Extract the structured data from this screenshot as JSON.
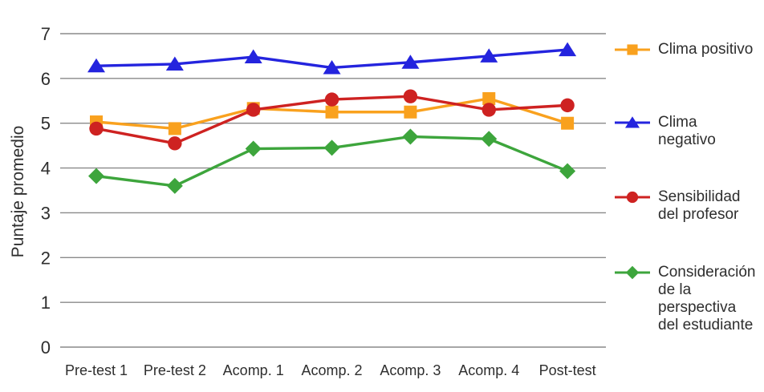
{
  "chart_data": {
    "type": "line",
    "title": "",
    "xlabel": "",
    "ylabel": "Puntaje promedio",
    "ylim": [
      0,
      7
    ],
    "yticks": [
      0,
      1,
      2,
      3,
      4,
      5,
      6,
      7
    ],
    "grid": true,
    "legend_position": "right",
    "axis_color": "#8a8a8a",
    "categories": [
      "Pre-test 1",
      "Pre-test 2",
      "Acomp. 1",
      "Acomp. 2",
      "Acomp. 3",
      "Acomp. 4",
      "Post-test"
    ],
    "series": [
      {
        "name": "Clima positivo",
        "label_display": "Clima positivo",
        "marker": "square",
        "color": "#F9A11E",
        "values": [
          5.03,
          4.88,
          5.33,
          5.25,
          5.25,
          5.55,
          5.0
        ]
      },
      {
        "name": "Clima negativo",
        "label_display": "Clima\nnegativo",
        "marker": "triangle",
        "color": "#2424DE",
        "values": [
          6.28,
          6.32,
          6.48,
          6.24,
          6.36,
          6.5,
          6.64
        ]
      },
      {
        "name": "Sensibilidad del profesor",
        "label_display": "Sensibilidad\ndel profesor",
        "marker": "circle",
        "color": "#CE2221",
        "values": [
          4.88,
          4.55,
          5.3,
          5.53,
          5.6,
          5.3,
          5.4
        ]
      },
      {
        "name": "Consideración de la perspectiva del estudiante",
        "label_display": "Consideración\nde la\nperspectiva\ndel estudiante",
        "marker": "diamond",
        "color": "#3DA53C",
        "values": [
          3.82,
          3.6,
          4.43,
          4.45,
          4.7,
          4.65,
          3.93
        ]
      }
    ]
  }
}
